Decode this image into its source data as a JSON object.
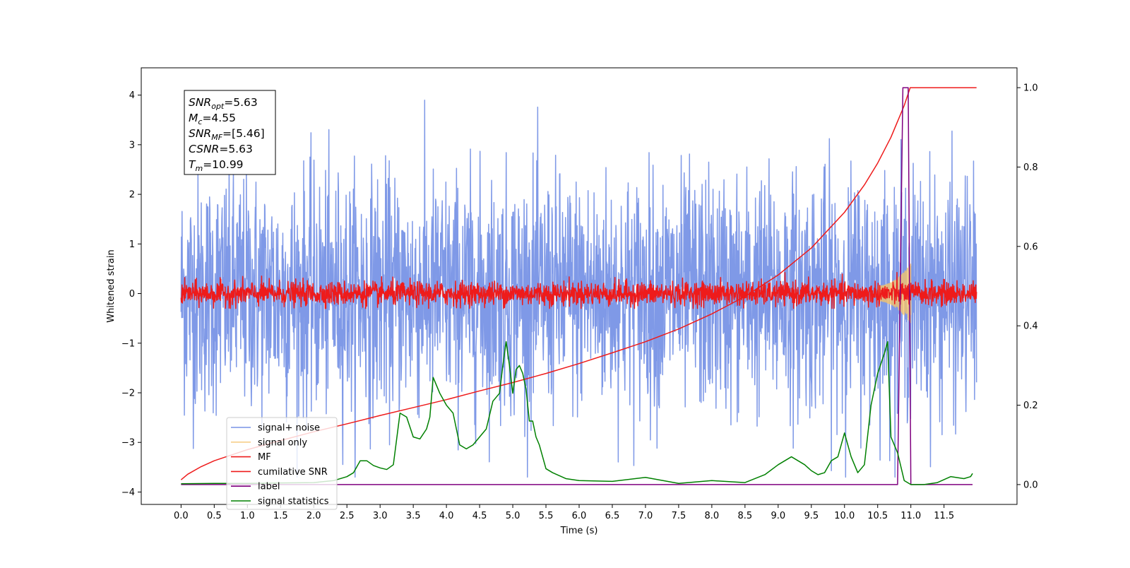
{
  "chart_data": {
    "type": "line",
    "title": "",
    "xlabel": "Time (s)",
    "ylabel": "Whitened strain",
    "y2label": "",
    "xlim": [
      -0.6,
      12.6
    ],
    "ylim": [
      -4.25,
      4.55
    ],
    "y2lim": [
      -0.05,
      1.05
    ],
    "x_ticks": [
      0.0,
      0.5,
      1.0,
      1.5,
      2.0,
      2.5,
      3.0,
      3.5,
      4.0,
      4.5,
      5.0,
      5.5,
      6.0,
      6.5,
      7.0,
      7.5,
      8.0,
      8.5,
      9.0,
      9.5,
      10.0,
      10.5,
      11.0,
      11.5
    ],
    "x_tick_labels": [
      "0.0",
      "0.5",
      "1.0",
      "1.5",
      "2.0",
      "2.5",
      "3.0",
      "3.5",
      "4.0",
      "4.5",
      "5.0",
      "5.5",
      "6.0",
      "6.5",
      "7.0",
      "7.5",
      "8.0",
      "8.5",
      "9.0",
      "9.5",
      "10.0",
      "10.5",
      "11.0",
      "11.5"
    ],
    "y_ticks": [
      -4,
      -3,
      -2,
      -1,
      0,
      1,
      2,
      3,
      4
    ],
    "y_tick_labels": [
      "−4",
      "−3",
      "−2",
      "−1",
      "0",
      "1",
      "2",
      "3",
      "4"
    ],
    "y2_ticks": [
      0.0,
      0.2,
      0.4,
      0.6,
      0.8,
      1.0
    ],
    "y2_tick_labels": [
      "0.0",
      "0.2",
      "0.4",
      "0.6",
      "0.8",
      "1.0"
    ],
    "grid": false,
    "legend_position": "lower-left",
    "series": [
      {
        "name": "signal+ noise",
        "axis": "left",
        "color": "#7893e6",
        "description_kind": "noise",
        "x_range": [
          0.0,
          11.99
        ],
        "typical_amplitude": 2.5,
        "peak_range": [
          -3.7,
          4.2
        ]
      },
      {
        "name": "signal only",
        "axis": "left",
        "color": "#f5c36b",
        "description_kind": "chirp",
        "x_range": [
          10.5,
          11.0
        ],
        "peak_range": [
          -0.4,
          0.6
        ]
      },
      {
        "name": "MF",
        "axis": "left",
        "color": "#ee1b1b",
        "description_kind": "noise",
        "x_range": [
          0.0,
          11.99
        ],
        "typical_amplitude": 0.25,
        "peak_range": [
          -0.3,
          1.0
        ]
      },
      {
        "name": "cumilative SNR",
        "axis": "right",
        "color": "#ee1b1b",
        "x": [
          0.0,
          0.1,
          0.3,
          0.5,
          1.0,
          1.5,
          2.0,
          2.5,
          3.0,
          3.5,
          4.0,
          4.5,
          5.0,
          5.5,
          6.0,
          6.5,
          7.0,
          7.5,
          8.0,
          8.5,
          9.0,
          9.5,
          10.0,
          10.3,
          10.5,
          10.7,
          10.9,
          10.99,
          11.99
        ],
        "values": [
          0.012,
          0.026,
          0.045,
          0.06,
          0.088,
          0.111,
          0.133,
          0.153,
          0.174,
          0.194,
          0.214,
          0.236,
          0.257,
          0.28,
          0.305,
          0.332,
          0.36,
          0.392,
          0.43,
          0.474,
          0.528,
          0.596,
          0.686,
          0.755,
          0.81,
          0.875,
          0.955,
          1.0,
          1.0
        ]
      },
      {
        "name": "label",
        "axis": "right",
        "color": "#7f007f",
        "x": [
          0.0,
          10.8,
          10.88,
          10.92,
          10.96,
          11.0,
          11.93
        ],
        "values": [
          0.0,
          0.0,
          1.0,
          1.0,
          1.0,
          0.0,
          0.0
        ]
      },
      {
        "name": "signal statistics",
        "axis": "right",
        "color": "#008000",
        "x": [
          0.0,
          0.5,
          1.0,
          1.5,
          2.0,
          2.3,
          2.5,
          2.6,
          2.7,
          2.8,
          2.9,
          3.0,
          3.1,
          3.2,
          3.3,
          3.4,
          3.5,
          3.6,
          3.7,
          3.75,
          3.8,
          3.85,
          3.9,
          4.0,
          4.1,
          4.2,
          4.3,
          4.4,
          4.5,
          4.6,
          4.7,
          4.8,
          4.85,
          4.9,
          4.95,
          5.0,
          5.05,
          5.1,
          5.15,
          5.2,
          5.25,
          5.3,
          5.35,
          5.4,
          5.5,
          5.6,
          5.8,
          6.0,
          6.5,
          7.0,
          7.5,
          8.0,
          8.5,
          8.8,
          9.0,
          9.2,
          9.4,
          9.5,
          9.6,
          9.7,
          9.8,
          9.9,
          10.0,
          10.1,
          10.2,
          10.3,
          10.4,
          10.5,
          10.6,
          10.65,
          10.7,
          10.8,
          10.9,
          11.0,
          11.2,
          11.4,
          11.6,
          11.8,
          11.9,
          11.93
        ],
        "values": [
          0.002,
          0.003,
          0.003,
          0.004,
          0.005,
          0.01,
          0.02,
          0.03,
          0.06,
          0.06,
          0.048,
          0.042,
          0.038,
          0.05,
          0.18,
          0.17,
          0.12,
          0.115,
          0.14,
          0.17,
          0.27,
          0.25,
          0.23,
          0.2,
          0.18,
          0.1,
          0.09,
          0.1,
          0.12,
          0.14,
          0.21,
          0.23,
          0.3,
          0.36,
          0.3,
          0.23,
          0.29,
          0.3,
          0.28,
          0.24,
          0.16,
          0.16,
          0.12,
          0.1,
          0.04,
          0.03,
          0.015,
          0.01,
          0.008,
          0.018,
          0.003,
          0.01,
          0.005,
          0.025,
          0.05,
          0.07,
          0.05,
          0.035,
          0.025,
          0.03,
          0.06,
          0.07,
          0.13,
          0.07,
          0.03,
          0.05,
          0.2,
          0.28,
          0.33,
          0.36,
          0.12,
          0.08,
          0.01,
          0.0,
          0.0,
          0.005,
          0.02,
          0.015,
          0.02,
          0.028
        ]
      }
    ],
    "annotations": [
      {
        "base": "SNR",
        "sub": "opt",
        "value": "=5.63"
      },
      {
        "base": "M",
        "sub": "c",
        "value": "=4.55"
      },
      {
        "base": "SNR",
        "sub": "MF",
        "value": "=[5.46]"
      },
      {
        "base": "CSNR",
        "sub": "",
        "value": "=5.63"
      },
      {
        "base": "T",
        "sub": "m",
        "value": "=10.99"
      }
    ]
  }
}
